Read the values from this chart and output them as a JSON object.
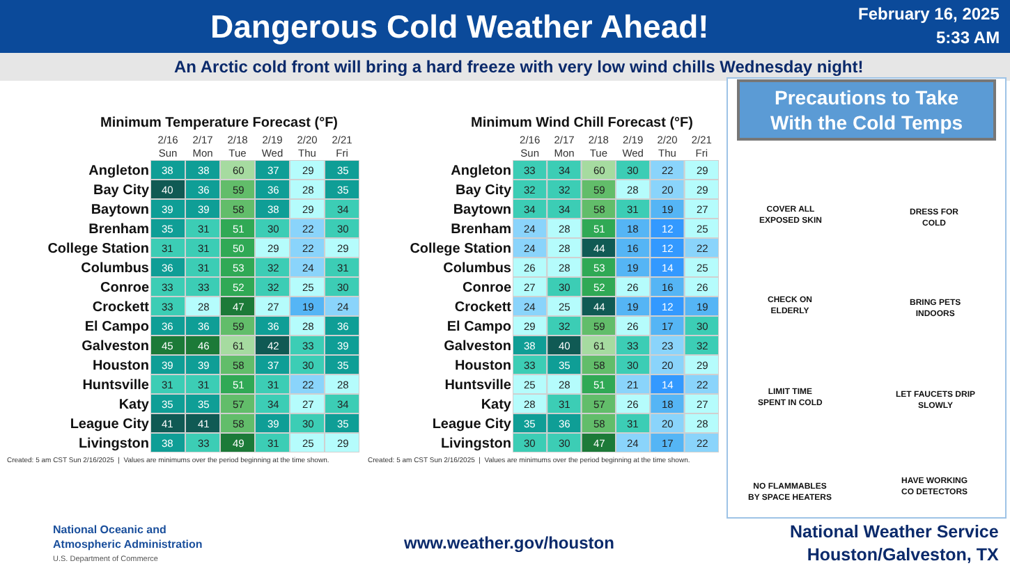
{
  "chart_data": [
    {
      "type": "other",
      "title": "Dangerous Cold Weather Ahead!",
      "subtitle": "An Arctic cold front will bring a hard freeze with very low wind chills Wednesday night!",
      "annotations": [
        "February 16, 2025",
        "5:33 AM",
        "National Oceanic and\nAtmospheric Administration",
        "U.S. Department of Commerce",
        "www.weather.gov/houston",
        "National Weather Service\nHouston/Galveston, TX"
      ]
    },
    {
      "type": "heatmap",
      "title": "Minimum Temperature Forecast (°F)",
      "data_labels": true,
      "categories": [
        "2/16\nSun",
        "2/17\nMon",
        "2/18\nTue",
        "2/19\nWed",
        "2/20\nThu",
        "2/21\nFri"
      ],
      "y_categories": [
        "Angleton",
        "Bay City",
        "Baytown",
        "Brenham",
        "College Station",
        "Columbus",
        "Conroe",
        "Crockett",
        "El Campo",
        "Galveston",
        "Houston",
        "Huntsville",
        "Katy",
        "League City",
        "Livingston"
      ],
      "cells": [
        [
          38,
          38,
          60,
          37,
          29,
          35
        ],
        [
          40,
          36,
          59,
          36,
          28,
          35
        ],
        [
          39,
          39,
          58,
          38,
          29,
          34
        ],
        [
          35,
          31,
          51,
          30,
          22,
          30
        ],
        [
          31,
          31,
          50,
          29,
          22,
          29
        ],
        [
          36,
          31,
          53,
          32,
          24,
          31
        ],
        [
          33,
          33,
          52,
          32,
          25,
          30
        ],
        [
          33,
          28,
          47,
          27,
          19,
          24
        ],
        [
          36,
          36,
          59,
          36,
          28,
          36
        ],
        [
          45,
          46,
          61,
          42,
          33,
          39
        ],
        [
          39,
          39,
          58,
          37,
          30,
          35
        ],
        [
          31,
          31,
          51,
          31,
          22,
          28
        ],
        [
          35,
          35,
          57,
          34,
          27,
          34
        ],
        [
          41,
          41,
          58,
          39,
          30,
          35
        ],
        [
          38,
          33,
          49,
          31,
          25,
          29
        ]
      ],
      "annotations": [
        "Created: 5 am CST Sun 2/16/2025  |  Values are minimums over the period beginning at the time shown."
      ]
    },
    {
      "type": "heatmap",
      "title": "Minimum Wind Chill Forecast (°F)",
      "data_labels": true,
      "categories": [
        "2/16\nSun",
        "2/17\nMon",
        "2/18\nTue",
        "2/19\nWed",
        "2/20\nThu",
        "2/21\nFri"
      ],
      "y_categories": [
        "Angleton",
        "Bay City",
        "Baytown",
        "Brenham",
        "College Station",
        "Columbus",
        "Conroe",
        "Crockett",
        "El Campo",
        "Galveston",
        "Houston",
        "Huntsville",
        "Katy",
        "League City",
        "Livingston"
      ],
      "cells": [
        [
          33,
          34,
          60,
          30,
          22,
          29
        ],
        [
          32,
          32,
          59,
          28,
          20,
          29
        ],
        [
          34,
          34,
          58,
          31,
          19,
          27
        ],
        [
          24,
          28,
          51,
          18,
          12,
          25
        ],
        [
          24,
          28,
          44,
          16,
          12,
          22
        ],
        [
          26,
          28,
          53,
          19,
          14,
          25
        ],
        [
          27,
          30,
          52,
          26,
          16,
          26
        ],
        [
          24,
          25,
          44,
          19,
          12,
          19
        ],
        [
          29,
          32,
          59,
          26,
          17,
          30
        ],
        [
          38,
          40,
          61,
          33,
          23,
          32
        ],
        [
          33,
          35,
          58,
          30,
          20,
          29
        ],
        [
          25,
          28,
          51,
          21,
          14,
          22
        ],
        [
          28,
          31,
          57,
          26,
          18,
          27
        ],
        [
          35,
          36,
          58,
          31,
          20,
          28
        ],
        [
          30,
          30,
          47,
          24,
          17,
          22
        ]
      ],
      "annotations": [
        "Created: 5 am CST Sun 2/16/2025  |  Values are minimums over the period beginning at the time shown."
      ]
    },
    {
      "type": "other",
      "title": "Precautions to Take\nWith the Cold Temps",
      "annotations": [
        "COVER ALL\nEXPOSED SKIN",
        "DRESS FOR\nCOLD",
        "CHECK ON\nELDERLY",
        "BRING PETS\nINDOORS",
        "LIMIT TIME\nSPENT IN COLD",
        "LET FAUCETS DRIP\nSLOWLY",
        "NO FLAMMABLES\nBY SPACE HEATERS",
        "HAVE WORKING\nCO DETECTORS"
      ]
    }
  ]
}
